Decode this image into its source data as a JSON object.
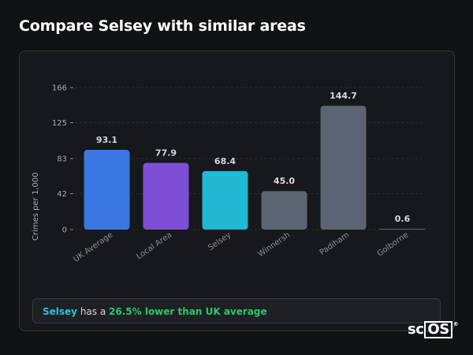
{
  "section": {
    "title": "Compare Selsey with similar areas"
  },
  "summary": {
    "place": "Selsey",
    "text_mid": " has a ",
    "stat": "26.5% lower than UK average"
  },
  "logo": {
    "prefix": "sc",
    "boxed": "OS",
    "mark": "®"
  },
  "colors": {
    "uk": "#3a78e0",
    "local": "#7c4fd6",
    "selsey": "#20b8d2",
    "other": "#5b6472",
    "background": "#111214",
    "card": "#17181b"
  },
  "chart_data": {
    "type": "bar",
    "ylabel": "Crimes per 1,000",
    "ylim": [
      0,
      166
    ],
    "yticks": [
      0,
      42,
      83,
      125,
      166
    ],
    "categories": [
      "UK Average",
      "Local Area",
      "Selsey",
      "Winnersh",
      "Padiham",
      "Golborne"
    ],
    "values": [
      93.1,
      77.9,
      68.4,
      45.0,
      144.7,
      0.6
    ],
    "value_labels": [
      "93.1",
      "77.9",
      "68.4",
      "45.0",
      "144.7",
      "0.6"
    ],
    "bar_colors": [
      "#3a78e0",
      "#7c4fd6",
      "#20b8d2",
      "#5b6472",
      "#5b6472",
      "#5b6472"
    ],
    "grid": true,
    "legend": "none"
  }
}
